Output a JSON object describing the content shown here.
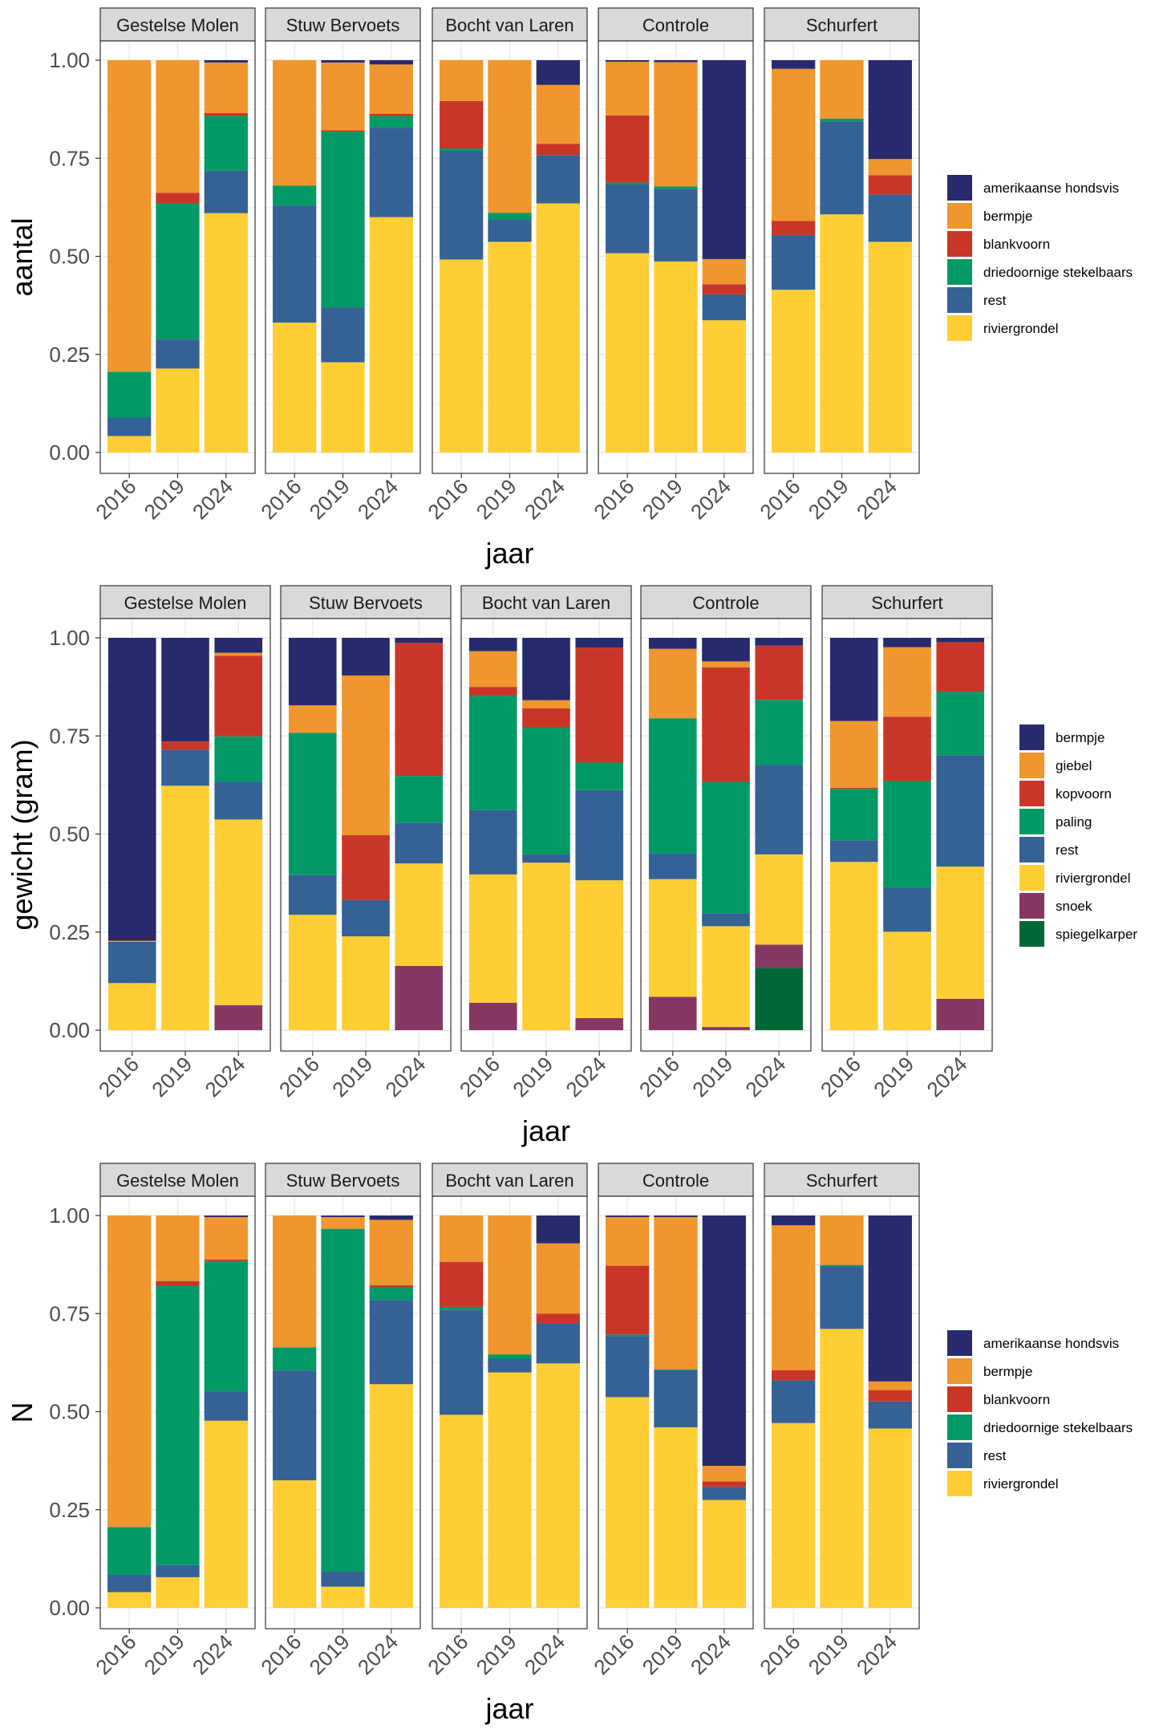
{
  "chart_data": [
    {
      "type": "bar",
      "stacked": true,
      "ylabel": "aantal",
      "xlabel": "jaar",
      "ylim": [
        0,
        1
      ],
      "yticks": [
        "0.00",
        "0.25",
        "0.50",
        "0.75",
        "1.00"
      ],
      "grid": true,
      "legend_position": "right",
      "facets": [
        "Gestelse Molen",
        "Stuw Bervoets",
        "Bocht van Laren",
        "Controle",
        "Schurfert"
      ],
      "categories": [
        "2016",
        "2019",
        "2024"
      ],
      "series": [
        {
          "name": "amerikaanse hondsvis",
          "color": "#282A6E",
          "values": {
            "Gestelse Molen": [
              0,
              0,
              0.006
            ],
            "Stuw Bervoets": [
              0,
              0.006,
              0.011
            ],
            "Bocht van Laren": [
              0,
              0,
              0.063
            ],
            "Controle": [
              0.004,
              0.005,
              0.507
            ],
            "Schurfert": [
              0.022,
              0,
              0.252
            ]
          }
        },
        {
          "name": "bermpje",
          "color": "#EF962E",
          "values": {
            "Gestelse Molen": [
              0.794,
              0.338,
              0.129
            ],
            "Stuw Bervoets": [
              0.32,
              0.173,
              0.126
            ],
            "Bocht van Laren": [
              0.104,
              0.389,
              0.15
            ],
            "Controle": [
              0.137,
              0.317,
              0.064
            ],
            "Schurfert": [
              0.388,
              0.149,
              0.041
            ]
          }
        },
        {
          "name": "blankvoorn",
          "color": "#C93628",
          "values": {
            "Gestelse Molen": [
              0,
              0.027,
              0.007
            ],
            "Stuw Bervoets": [
              0,
              0.003,
              0.005
            ],
            "Bocht van Laren": [
              0.121,
              0,
              0.029
            ],
            "Controle": [
              0.171,
              0,
              0.026
            ],
            "Schurfert": [
              0.036,
              0,
              0.049
            ]
          }
        },
        {
          "name": "driedoornige stekelbaars",
          "color": "#029966",
          "values": {
            "Gestelse Molen": [
              0.117,
              0.347,
              0.14
            ],
            "Stuw Bervoets": [
              0.051,
              0.449,
              0.03
            ],
            "Bocht van Laren": [
              0.006,
              0.017,
              0
            ],
            "Controle": [
              0.005,
              0.007,
              0
            ],
            "Schurfert": [
              0,
              0.007,
              0
            ]
          }
        },
        {
          "name": "rest",
          "color": "#356195",
          "values": {
            "Gestelse Molen": [
              0.047,
              0.074,
              0.108
            ],
            "Stuw Bervoets": [
              0.298,
              0.139,
              0.228
            ],
            "Bocht van Laren": [
              0.277,
              0.057,
              0.123
            ],
            "Controle": [
              0.175,
              0.184,
              0.066
            ],
            "Schurfert": [
              0.139,
              0.237,
              0.121
            ]
          }
        },
        {
          "name": "riviergrondel",
          "color": "#FFCE34",
          "values": {
            "Gestelse Molen": [
              0.042,
              0.214,
              0.61
            ],
            "Stuw Bervoets": [
              0.331,
              0.23,
              0.6
            ],
            "Bocht van Laren": [
              0.492,
              0.537,
              0.635
            ],
            "Controle": [
              0.508,
              0.487,
              0.337
            ],
            "Schurfert": [
              0.415,
              0.607,
              0.537
            ]
          }
        }
      ]
    },
    {
      "type": "bar",
      "stacked": true,
      "ylabel": "gewicht (gram)",
      "xlabel": "jaar",
      "ylim": [
        0,
        1
      ],
      "yticks": [
        "0.00",
        "0.25",
        "0.50",
        "0.75",
        "1.00"
      ],
      "grid": true,
      "legend_position": "right",
      "facets": [
        "Gestelse Molen",
        "Stuw Bervoets",
        "Bocht van Laren",
        "Controle",
        "Schurfert"
      ],
      "categories": [
        "2016",
        "2019",
        "2024"
      ],
      "series": [
        {
          "name": "bermpje",
          "color": "#282A6E",
          "values": {
            "Gestelse Molen": [
              0.772,
              0.264,
              0.038
            ],
            "Stuw Bervoets": [
              0.172,
              0.096,
              0.013
            ],
            "Bocht van Laren": [
              0.034,
              0.159,
              0.025
            ],
            "Controle": [
              0.028,
              0.06,
              0.02
            ],
            "Schurfert": [
              0.212,
              0.024,
              0.011
            ]
          }
        },
        {
          "name": "giebel",
          "color": "#EF962E",
          "values": {
            "Gestelse Molen": [
              0.003,
              0,
              0.008
            ],
            "Stuw Bervoets": [
              0.07,
              0.407,
              0
            ],
            "Bocht van Laren": [
              0.091,
              0.021,
              0
            ],
            "Controle": [
              0.177,
              0.015,
              0
            ],
            "Schurfert": [
              0.17,
              0.177,
              0
            ]
          }
        },
        {
          "name": "kopvoorn",
          "color": "#C93628",
          "values": {
            "Gestelse Molen": [
              0,
              0.021,
              0.205
            ],
            "Stuw Bervoets": [
              0,
              0.165,
              0.339
            ],
            "Bocht van Laren": [
              0.023,
              0.049,
              0.293
            ],
            "Controle": [
              0,
              0.292,
              0.138
            ],
            "Schurfert": [
              0.003,
              0.164,
              0.126
            ]
          }
        },
        {
          "name": "paling",
          "color": "#029966",
          "values": {
            "Gestelse Molen": [
              0,
              0,
              0.116
            ],
            "Stuw Bervoets": [
              0.363,
              0,
              0.119
            ],
            "Bocht van Laren": [
              0.291,
              0.323,
              0.07
            ],
            "Controle": [
              0.345,
              0.335,
              0.166
            ],
            "Schurfert": [
              0.131,
              0.272,
              0.162
            ]
          }
        },
        {
          "name": "rest",
          "color": "#356195",
          "values": {
            "Gestelse Molen": [
              0.105,
              0.092,
              0.096
            ],
            "Stuw Bervoets": [
              0.101,
              0.093,
              0.104
            ],
            "Bocht van Laren": [
              0.164,
              0.021,
              0.23
            ],
            "Controle": [
              0.065,
              0.033,
              0.228
            ],
            "Schurfert": [
              0.055,
              0.112,
              0.284
            ]
          }
        },
        {
          "name": "riviergrondel",
          "color": "#FFCE34",
          "values": {
            "Gestelse Molen": [
              0.12,
              0.623,
              0.473
            ],
            "Stuw Bervoets": [
              0.294,
              0.239,
              0.261
            ],
            "Bocht van Laren": [
              0.327,
              0.427,
              0.351
            ],
            "Controle": [
              0.3,
              0.257,
              0.23
            ],
            "Schurfert": [
              0.429,
              0.251,
              0.337
            ]
          }
        },
        {
          "name": "snoek",
          "color": "#843862",
          "values": {
            "Gestelse Molen": [
              0,
              0,
              0.064
            ],
            "Stuw Bervoets": [
              0,
              0,
              0.164
            ],
            "Bocht van Laren": [
              0.07,
              0,
              0.031
            ],
            "Controle": [
              0.085,
              0.008,
              0.059
            ],
            "Schurfert": [
              0,
              0,
              0.08
            ]
          }
        },
        {
          "name": "spiegelkarper",
          "color": "#006837",
          "values": {
            "Gestelse Molen": [
              0,
              0,
              0
            ],
            "Stuw Bervoets": [
              0,
              0,
              0
            ],
            "Bocht van Laren": [
              0,
              0,
              0
            ],
            "Controle": [
              0,
              0,
              0.159
            ],
            "Schurfert": [
              0,
              0,
              0
            ]
          }
        }
      ]
    },
    {
      "type": "bar",
      "stacked": true,
      "ylabel": "N",
      "xlabel": "jaar",
      "ylim": [
        0,
        1
      ],
      "yticks": [
        "0.00",
        "0.25",
        "0.50",
        "0.75",
        "1.00"
      ],
      "grid": true,
      "legend_position": "right",
      "facets": [
        "Gestelse Molen",
        "Stuw Bervoets",
        "Bocht van Laren",
        "Controle",
        "Schurfert"
      ],
      "categories": [
        "2016",
        "2019",
        "2024"
      ],
      "series": [
        {
          "name": "amerikaanse hondsvis",
          "color": "#282A6E",
          "values": {
            "Gestelse Molen": [
              0,
              0,
              0.004
            ],
            "Stuw Bervoets": [
              0,
              0.004,
              0.011
            ],
            "Bocht van Laren": [
              0,
              0,
              0.071
            ],
            "Controle": [
              0.004,
              0.004,
              0.638
            ],
            "Schurfert": [
              0.025,
              0,
              0.423
            ]
          }
        },
        {
          "name": "bermpje",
          "color": "#EF962E",
          "values": {
            "Gestelse Molen": [
              0.794,
              0.167,
              0.108
            ],
            "Stuw Bervoets": [
              0.336,
              0.03,
              0.167
            ],
            "Bocht van Laren": [
              0.118,
              0.354,
              0.179
            ],
            "Controle": [
              0.124,
              0.388,
              0.04
            ],
            "Schurfert": [
              0.369,
              0.126,
              0.022
            ]
          }
        },
        {
          "name": "blankvoorn",
          "color": "#C93628",
          "values": {
            "Gestelse Molen": [
              0,
              0.012,
              0.004
            ],
            "Stuw Bervoets": [
              0,
              0,
              0.004
            ],
            "Bocht van Laren": [
              0.115,
              0,
              0.024
            ],
            "Controle": [
              0.175,
              0,
              0.014
            ],
            "Schurfert": [
              0.026,
              0,
              0.029
            ]
          }
        },
        {
          "name": "driedoornige stekelbaars",
          "color": "#029966",
          "values": {
            "Gestelse Molen": [
              0.121,
              0.712,
              0.332
            ],
            "Stuw Bervoets": [
              0.059,
              0.874,
              0.033
            ],
            "Bocht van Laren": [
              0.008,
              0.011,
              0.001
            ],
            "Controle": [
              0.004,
              0.002,
              0
            ],
            "Schurfert": [
              0,
              0.004,
              0
            ]
          }
        },
        {
          "name": "rest",
          "color": "#356195",
          "values": {
            "Gestelse Molen": [
              0.045,
              0.031,
              0.075
            ],
            "Stuw Bervoets": [
              0.28,
              0.038,
              0.215
            ],
            "Bocht van Laren": [
              0.267,
              0.035,
              0.102
            ],
            "Controle": [
              0.156,
              0.146,
              0.033
            ],
            "Schurfert": [
              0.109,
              0.159,
              0.069
            ]
          }
        },
        {
          "name": "riviergrondel",
          "color": "#FFCE34",
          "values": {
            "Gestelse Molen": [
              0.04,
              0.078,
              0.477
            ],
            "Stuw Bervoets": [
              0.325,
              0.054,
              0.57
            ],
            "Bocht van Laren": [
              0.492,
              0.6,
              0.623
            ],
            "Controle": [
              0.537,
              0.46,
              0.275
            ],
            "Schurfert": [
              0.471,
              0.711,
              0.457
            ]
          }
        }
      ]
    }
  ]
}
